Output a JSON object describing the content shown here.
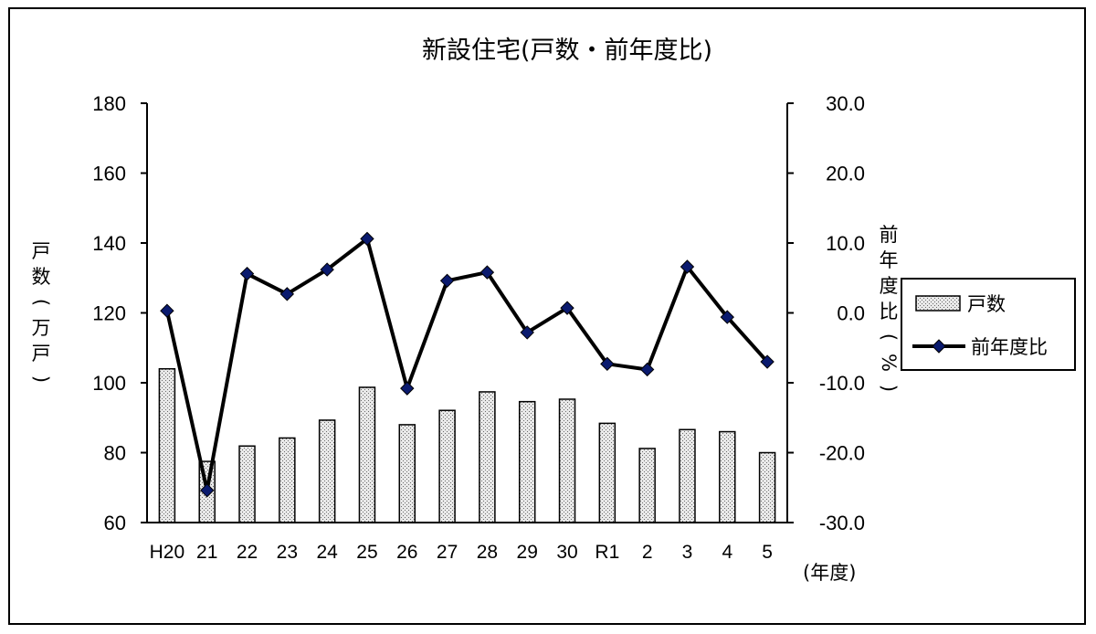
{
  "chart_data": {
    "type": "bar+line",
    "title": "新設住宅(戸数・前年度比)",
    "categories": [
      "H20",
      "21",
      "22",
      "23",
      "24",
      "25",
      "26",
      "27",
      "28",
      "29",
      "30",
      "R1",
      "2",
      "3",
      "4",
      "5"
    ],
    "series": [
      {
        "name": "戸数",
        "type": "bar",
        "axis": "left",
        "values": [
          104.0,
          77.5,
          81.9,
          84.2,
          89.3,
          98.7,
          88.0,
          92.1,
          97.4,
          94.6,
          95.3,
          88.4,
          81.2,
          86.6,
          86.0,
          80.0
        ]
      },
      {
        "name": "前年度比",
        "type": "line",
        "axis": "right",
        "values": [
          0.3,
          -25.4,
          5.6,
          2.7,
          6.2,
          10.6,
          -10.8,
          4.6,
          5.8,
          -2.8,
          0.7,
          -7.3,
          -8.1,
          6.6,
          -0.6,
          -7.0
        ],
        "color": "#000000",
        "marker_color": "#0a1a6e"
      }
    ],
    "y_left": {
      "label": "戸数(万戸)",
      "ylim": [
        60,
        180
      ],
      "ticks": [
        "180",
        "160",
        "140",
        "120",
        "100",
        "80",
        "60"
      ]
    },
    "y_right": {
      "label": "前年度比(%)",
      "ylim": [
        -30,
        30
      ],
      "ticks": [
        "30.0",
        "20.0",
        "10.0",
        "0.0",
        "-10.0",
        "-20.0",
        "-30.0"
      ]
    },
    "x_unit": "(年度)",
    "legend": {
      "position": "right",
      "entries": [
        "戸数",
        "前年度比"
      ]
    },
    "grid": false
  }
}
